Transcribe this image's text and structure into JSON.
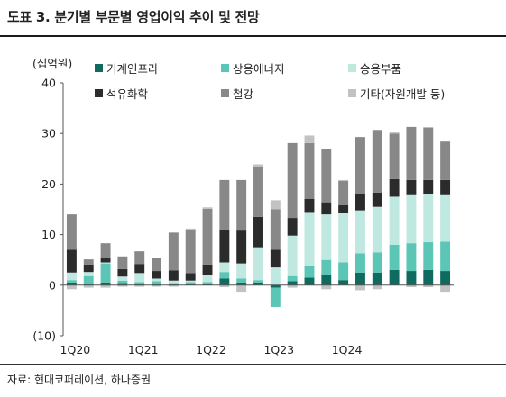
{
  "title": "도표 3. 분기별 부문별 영업이익 추이 및 전망",
  "source": "자료: 현대코퍼레이션, 하나증권",
  "colors": {
    "machinery": "#0f6b5f",
    "commercial_energy": "#5cc6b6",
    "auto_parts": "#bfe8e1",
    "petrochemical": "#2b2b2b",
    "steel": "#888888",
    "others": "#c2c2c2"
  },
  "chart_data": {
    "type": "bar",
    "stacked": true,
    "title": "",
    "ylabel": "(십억원)",
    "ylim": [
      -10,
      40
    ],
    "yticks": [
      40,
      30,
      20,
      10,
      0,
      -10
    ],
    "ytick_labels": [
      "40",
      "30",
      "20",
      "10",
      "0",
      "(10)"
    ],
    "xtick_labels": [
      "1Q20",
      "1Q21",
      "1Q22",
      "1Q23",
      "1Q24"
    ],
    "categories": [
      "1Q20",
      "2Q20",
      "3Q20",
      "4Q20",
      "1Q21",
      "2Q21",
      "3Q21",
      "4Q21",
      "1Q22",
      "2Q22",
      "3Q22",
      "4Q22",
      "1Q23",
      "2Q23",
      "3Q23",
      "4Q23",
      "1Q24",
      "2Q24",
      "3Q24",
      "4Q24",
      "1Q25",
      "2Q25",
      "3Q25"
    ],
    "series": [
      {
        "name": "기계인프라",
        "values": [
          0.5,
          0.3,
          0.5,
          0.4,
          0.3,
          0.3,
          0.2,
          0.3,
          0.3,
          1.3,
          0.5,
          0.5,
          -0.5,
          0.8,
          1.5,
          2.0,
          1.0,
          2.5,
          2.5,
          3.0,
          2.8,
          3.0,
          2.8
        ]
      },
      {
        "name": "상용에너지",
        "values": [
          0.5,
          1.5,
          3.8,
          0.5,
          0.3,
          0.5,
          0.2,
          0.3,
          0.3,
          1.3,
          0.8,
          0.5,
          -3.8,
          1.0,
          2.3,
          3.0,
          3.5,
          3.8,
          4.0,
          5.0,
          5.5,
          5.5,
          5.8
        ]
      },
      {
        "name": "승용부품",
        "values": [
          1.5,
          0.8,
          0.2,
          0.8,
          1.8,
          0.5,
          0.5,
          0.3,
          1.5,
          1.9,
          3.0,
          6.5,
          3.5,
          8.0,
          10.5,
          9.0,
          9.7,
          8.5,
          9.0,
          9.5,
          9.5,
          9.5,
          9.2
        ]
      },
      {
        "name": "석유화학",
        "values": [
          4.5,
          1.5,
          0.8,
          1.5,
          1.8,
          1.5,
          2.0,
          1.5,
          2.0,
          6.5,
          6.5,
          6.0,
          3.5,
          3.5,
          2.8,
          2.4,
          1.6,
          3.3,
          2.8,
          3.5,
          3.0,
          2.8,
          3.0
        ]
      },
      {
        "name": "철강",
        "values": [
          7.0,
          1.0,
          3.0,
          2.5,
          2.5,
          2.5,
          7.5,
          8.5,
          11.0,
          9.8,
          10.0,
          9.9,
          8.0,
          14.8,
          11.0,
          10.5,
          4.8,
          11.2,
          12.4,
          9.0,
          10.5,
          10.4,
          7.6
        ]
      },
      {
        "name": "기타(자원개발 등)",
        "values": [
          -0.8,
          -0.5,
          -0.5,
          -0.3,
          -0.3,
          -0.3,
          -0.3,
          0.3,
          0.3,
          -0.4,
          -1.3,
          0.5,
          1.8,
          -0.5,
          1.5,
          -0.8,
          0.2,
          -1.0,
          -0.8,
          0.2,
          -0.4,
          -0.4,
          -1.3
        ]
      }
    ],
    "grid": false,
    "legend_position": "top"
  }
}
